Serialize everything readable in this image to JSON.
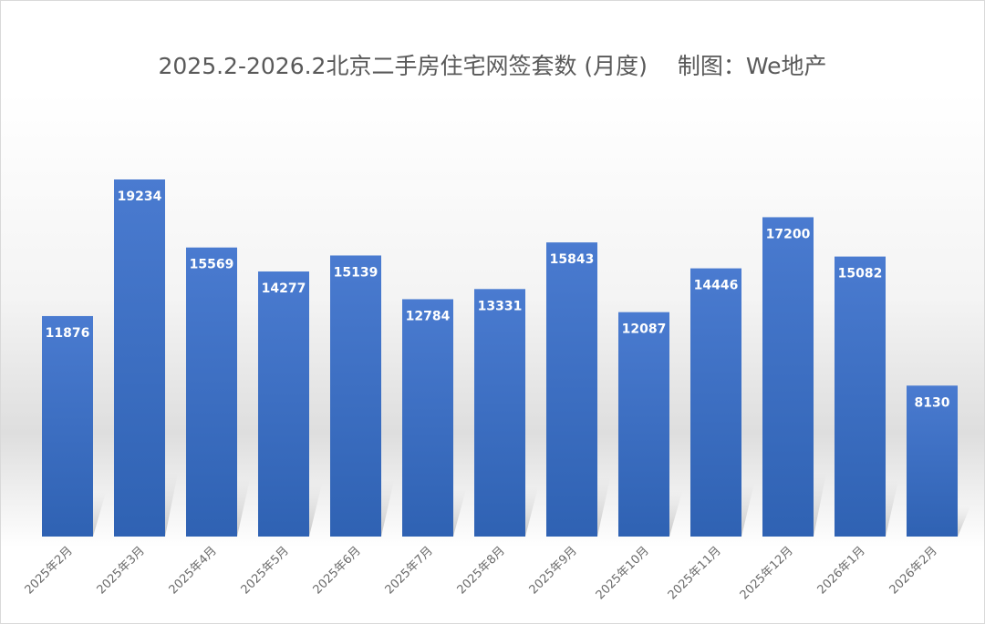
{
  "chart_data": {
    "type": "bar",
    "title": "2025.2-2026.2北京二手房住宅网签套数 (月度)　 制图：We地产",
    "xlabel": "",
    "ylabel": "",
    "categories": [
      "2025年2月",
      "2025年3月",
      "2025年4月",
      "2025年5月",
      "2025年6月",
      "2025年7月",
      "2025年8月",
      "2025年9月",
      "2025年10月",
      "2025年11月",
      "2025年12月",
      "2026年1月",
      "2026年2月"
    ],
    "values": [
      11876,
      19234,
      15569,
      14277,
      15139,
      12784,
      13331,
      15843,
      12087,
      14446,
      17200,
      15082,
      8130
    ],
    "data_labels": [
      "11876",
      "19234",
      "15569",
      "14277",
      "15139",
      "12784",
      "13331",
      "15843",
      "12087",
      "14446",
      "17200",
      "15082",
      "8130"
    ],
    "ylim": [
      0,
      19234
    ],
    "grid": false,
    "legend": "none",
    "colors": {
      "bar": "#4472c4",
      "bar_dark": "#2f5597",
      "title": "#595959",
      "tick": "#6b6b6b"
    }
  }
}
